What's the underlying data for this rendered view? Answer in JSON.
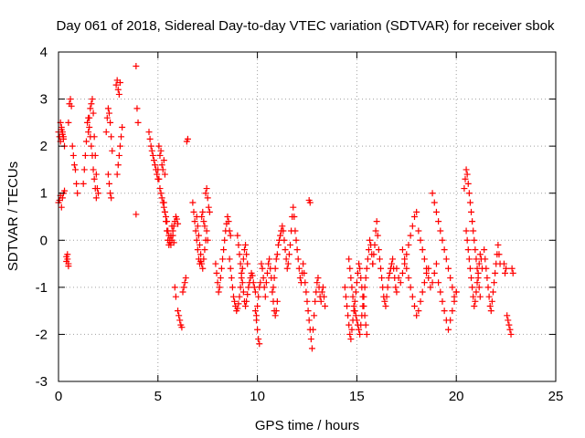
{
  "chart_data": {
    "type": "scatter",
    "title": "Day 061 of 2018, Sidereal Day-to-day VTEC variation (SDTVAR) for receiver sbok",
    "xlabel": "GPS time / hours",
    "ylabel": "SDTVAR / TECUs",
    "xlim": [
      0,
      25
    ],
    "ylim": [
      -3,
      4
    ],
    "xticks": [
      0,
      5,
      10,
      15,
      20,
      25
    ],
    "yticks": [
      -3,
      -2,
      -1,
      0,
      1,
      2,
      3,
      4
    ],
    "grid": true,
    "marker": "plus",
    "color": "#ff0000",
    "series": [
      {
        "name": "SDTVAR",
        "x": [
          0.0,
          0.05,
          0.1,
          0.15,
          0.2,
          0.25,
          0.1,
          0.15,
          0.2,
          0.25,
          0.3,
          0.0,
          0.05,
          0.1,
          0.15,
          0.2,
          0.25,
          0.3,
          0.4,
          0.45,
          0.5,
          0.4,
          0.45,
          0.5,
          0.5,
          0.55,
          0.6,
          0.65,
          0.7,
          0.75,
          0.8,
          0.85,
          0.9,
          0.95,
          1.25,
          1.3,
          1.35,
          1.4,
          1.45,
          1.5,
          1.55,
          1.6,
          1.65,
          1.7,
          1.75,
          1.8,
          1.85,
          1.9,
          1.5,
          1.55,
          1.6,
          1.65,
          1.7,
          1.75,
          1.8,
          1.85,
          1.9,
          1.95,
          2.0,
          2.4,
          2.45,
          2.5,
          2.55,
          2.6,
          2.65,
          2.7,
          2.5,
          2.55,
          2.6,
          2.65,
          2.9,
          2.95,
          3.0,
          3.05,
          3.1,
          2.95,
          3.0,
          3.05,
          3.1,
          3.15,
          3.2,
          3.9,
          3.95,
          4.0,
          3.9,
          4.55,
          4.6,
          4.65,
          4.7,
          4.75,
          4.8,
          4.85,
          4.9,
          4.95,
          5.0,
          5.05,
          5.1,
          5.15,
          5.2,
          5.25,
          5.3,
          5.35,
          5.0,
          5.05,
          5.1,
          5.15,
          5.2,
          5.25,
          5.3,
          5.35,
          5.4,
          5.45,
          5.5,
          5.55,
          5.6,
          5.65,
          5.7,
          5.75,
          5.8,
          5.3,
          5.35,
          5.4,
          5.45,
          5.5,
          5.55,
          5.6,
          5.65,
          5.7,
          5.75,
          5.8,
          5.85,
          5.9,
          5.95,
          6.0,
          5.85,
          5.9,
          6.0,
          6.05,
          6.1,
          6.15,
          6.2,
          6.25,
          6.3,
          6.35,
          6.4,
          6.45,
          6.5,
          6.75,
          6.8,
          6.85,
          6.9,
          6.95,
          7.0,
          7.05,
          7.1,
          7.15,
          7.2,
          7.25,
          7.3,
          7.35,
          7.4,
          7.45,
          7.5,
          7.55,
          7.6,
          6.95,
          7.0,
          7.05,
          7.1,
          7.15,
          7.2,
          7.25,
          7.3,
          7.35,
          7.4,
          7.45,
          7.5,
          7.9,
          7.95,
          8.0,
          8.05,
          8.1,
          8.15,
          8.2,
          8.25,
          8.3,
          8.35,
          8.4,
          8.45,
          8.5,
          8.55,
          8.6,
          8.65,
          8.6,
          8.65,
          8.7,
          8.75,
          8.8,
          8.85,
          8.9,
          8.95,
          9.0,
          9.05,
          9.1,
          9.15,
          9.2,
          9.25,
          9.3,
          9.35,
          9.4,
          9.45,
          9.5,
          9.0,
          9.05,
          9.1,
          9.15,
          9.2,
          9.25,
          9.3,
          9.35,
          9.4,
          9.45,
          9.5,
          9.55,
          9.6,
          9.65,
          9.7,
          9.75,
          9.8,
          9.85,
          9.9,
          9.9,
          9.95,
          10.0,
          10.05,
          10.1,
          9.95,
          10.0,
          10.05,
          10.1,
          10.15,
          10.2,
          10.25,
          10.3,
          10.35,
          10.4,
          10.45,
          10.5,
          10.55,
          10.6,
          10.65,
          10.7,
          10.75,
          10.8,
          10.85,
          10.9,
          10.95,
          11.0,
          10.8,
          10.85,
          10.9,
          10.95,
          11.0,
          11.05,
          11.1,
          11.15,
          11.2,
          11.25,
          11.3,
          11.35,
          11.4,
          11.45,
          11.5,
          11.55,
          11.6,
          11.65,
          11.7,
          11.75,
          11.8,
          11.85,
          11.9,
          11.95,
          12.0,
          12.05,
          12.1,
          12.15,
          12.2,
          12.25,
          12.3,
          12.35,
          12.4,
          12.45,
          12.5,
          12.55,
          12.6,
          12.65,
          12.7,
          12.75,
          12.8,
          12.85,
          12.9,
          12.95,
          13.0,
          13.05,
          13.1,
          13.15,
          13.2,
          13.25,
          13.3,
          13.35,
          13.4,
          12.6,
          12.65,
          14.4,
          14.45,
          14.5,
          14.55,
          14.6,
          14.65,
          14.7,
          14.75,
          14.8,
          14.85,
          14.9,
          14.95,
          15.0,
          15.05,
          15.1,
          15.15,
          15.2,
          15.25,
          15.3,
          15.35,
          15.4,
          15.45,
          15.5,
          14.6,
          14.65,
          14.7,
          14.75,
          14.8,
          14.85,
          14.9,
          14.95,
          15.0,
          15.05,
          15.1,
          15.15,
          15.2,
          15.25,
          15.3,
          15.35,
          15.4,
          15.45,
          15.5,
          15.55,
          15.6,
          15.65,
          15.7,
          15.75,
          15.8,
          15.8,
          15.85,
          15.9,
          15.95,
          16.0,
          16.05,
          16.1,
          16.15,
          16.2,
          16.25,
          16.3,
          16.35,
          16.4,
          16.45,
          16.5,
          16.55,
          16.6,
          16.65,
          16.7,
          16.75,
          16.8,
          16.85,
          16.9,
          16.95,
          17.0,
          17.0,
          17.1,
          17.2,
          17.3,
          17.4,
          17.5,
          17.6,
          17.7,
          17.8,
          17.9,
          18.0,
          18.1,
          18.2,
          18.3,
          18.4,
          18.5,
          18.6,
          18.7,
          18.8,
          18.9,
          19.0,
          17.3,
          17.4,
          17.5,
          17.6,
          17.7,
          17.8,
          17.9,
          18.0,
          18.1,
          18.2,
          18.3,
          18.4,
          18.5,
          18.6,
          18.8,
          18.9,
          19.0,
          19.1,
          19.2,
          19.3,
          19.4,
          19.5,
          19.6,
          19.7,
          19.8,
          19.9,
          20.0,
          19.1,
          19.2,
          19.3,
          19.4,
          19.5,
          19.6,
          19.7,
          19.8,
          19.9,
          20.0,
          20.4,
          20.45,
          20.5,
          20.55,
          20.6,
          20.65,
          20.7,
          20.75,
          20.8,
          20.85,
          20.9,
          20.95,
          21.0,
          21.05,
          21.1,
          21.15,
          21.2,
          20.5,
          20.55,
          20.6,
          20.65,
          20.7,
          20.75,
          20.8,
          20.85,
          20.9,
          20.95,
          21.0,
          21.05,
          21.1,
          21.15,
          21.2,
          21.25,
          21.3,
          21.4,
          21.45,
          21.5,
          21.55,
          21.6,
          21.65,
          21.7,
          21.75,
          21.8,
          21.85,
          21.9,
          21.95,
          22.0,
          22.05,
          22.1,
          22.15,
          22.2,
          22.4,
          22.45,
          22.5,
          22.55,
          22.6,
          22.65,
          22.7,
          22.75,
          22.8,
          22.85
        ],
        "y": [
          2.3,
          2.2,
          2.1,
          2.35,
          2.25,
          2.15,
          2.5,
          2.4,
          2.3,
          2.2,
          2.0,
          0.8,
          0.85,
          0.95,
          0.7,
          0.9,
          1.0,
          1.05,
          -0.35,
          -0.4,
          -0.5,
          -0.45,
          -0.3,
          -0.55,
          2.5,
          2.9,
          3.0,
          2.85,
          2.0,
          1.8,
          1.6,
          1.5,
          1.2,
          1.0,
          1.2,
          1.5,
          1.8,
          2.1,
          2.5,
          2.6,
          2.4,
          2.2,
          2.0,
          1.8,
          1.5,
          1.3,
          1.1,
          0.9,
          2.3,
          2.6,
          2.8,
          2.9,
          3.0,
          2.7,
          2.2,
          1.8,
          1.4,
          1.1,
          1.0,
          2.3,
          2.6,
          2.8,
          2.7,
          2.5,
          2.2,
          1.9,
          1.4,
          1.2,
          1.0,
          0.9,
          3.3,
          3.4,
          3.2,
          3.1,
          3.35,
          1.4,
          1.6,
          1.8,
          2.0,
          2.2,
          2.4,
          3.7,
          2.8,
          2.5,
          0.55,
          2.3,
          2.15,
          2.0,
          1.9,
          1.8,
          1.7,
          1.6,
          1.5,
          1.4,
          1.3,
          2.0,
          1.8,
          1.9,
          1.6,
          1.5,
          1.7,
          1.4,
          1.5,
          1.3,
          1.1,
          1.0,
          0.9,
          0.8,
          0.7,
          0.6,
          0.5,
          0.4,
          0.2,
          0.1,
          0.0,
          -0.1,
          0.0,
          0.1,
          -0.05,
          0.8,
          0.6,
          0.4,
          0.2,
          0.0,
          -0.1,
          -0.05,
          0.1,
          0.3,
          0.2,
          0.3,
          0.4,
          0.5,
          0.45,
          0.35,
          -1.0,
          -1.2,
          -1.5,
          -1.6,
          -1.7,
          -1.8,
          -1.85,
          -1.1,
          -1.0,
          -0.9,
          -0.8,
          2.1,
          2.15,
          0.8,
          0.6,
          0.4,
          0.2,
          0.0,
          -0.2,
          -0.4,
          -0.5,
          -0.45,
          0.5,
          0.6,
          0.4,
          0.3,
          1.0,
          1.1,
          0.9,
          0.7,
          0.6,
          0.5,
          0.3,
          0.1,
          -0.1,
          -0.3,
          -0.5,
          -0.6,
          -0.4,
          -0.2,
          0.0,
          0.2,
          0.0,
          -0.5,
          -0.7,
          -0.9,
          -1.1,
          -1.0,
          -0.8,
          -0.6,
          -0.4,
          -0.2,
          0.0,
          0.2,
          0.35,
          0.5,
          0.4,
          0.2,
          0.1,
          -0.4,
          -0.6,
          -0.8,
          -1.0,
          -1.2,
          -1.3,
          -1.4,
          -1.5,
          -1.45,
          -1.35,
          -1.2,
          -1.0,
          -0.8,
          -0.6,
          -0.4,
          -0.2,
          -0.1,
          -0.3,
          -0.5,
          0.1,
          -0.1,
          -0.3,
          -0.5,
          -0.7,
          -0.9,
          -1.1,
          -1.3,
          -1.4,
          -1.3,
          -1.15,
          -1.0,
          -0.9,
          -0.8,
          -0.7,
          -0.75,
          -0.9,
          -1.0,
          -1.1,
          -1.5,
          -1.7,
          -1.9,
          -2.1,
          -2.2,
          -1.6,
          -1.4,
          -1.2,
          -1.0,
          -0.9,
          -0.5,
          -0.6,
          -0.8,
          -1.0,
          -1.2,
          -0.9,
          -0.7,
          -0.5,
          -0.4,
          -0.6,
          -0.8,
          -1.1,
          -1.3,
          -1.5,
          -1.6,
          -1.5,
          -1.3,
          -1.0,
          -0.8,
          -0.6,
          -0.4,
          -0.3,
          -0.1,
          0.0,
          0.1,
          0.2,
          0.3,
          0.2,
          0.0,
          -0.2,
          -0.4,
          -0.6,
          -0.5,
          -0.3,
          -0.1,
          0.2,
          0.5,
          0.7,
          0.5,
          0.2,
          0.0,
          -0.2,
          -0.4,
          -0.6,
          -0.8,
          -0.9,
          -0.7,
          -0.5,
          -0.7,
          -0.9,
          -1.1,
          -1.3,
          -1.5,
          -1.7,
          -1.9,
          -2.1,
          -2.3,
          -1.9,
          -1.6,
          -1.3,
          -1.1,
          -0.9,
          -0.8,
          -1.0,
          -1.2,
          -1.3,
          -1.1,
          -1.0,
          -1.2,
          -1.4,
          0.85,
          0.8,
          -1.0,
          -1.2,
          -1.4,
          -1.6,
          -1.8,
          -2.0,
          -2.1,
          -1.9,
          -1.7,
          -1.5,
          -1.3,
          -1.1,
          -0.9,
          -0.7,
          -0.5,
          -0.6,
          -0.8,
          -1.0,
          -1.2,
          -1.4,
          -1.6,
          -1.8,
          -2.0,
          -0.4,
          -0.6,
          -0.8,
          -1.0,
          -1.2,
          -1.4,
          -1.5,
          -1.6,
          -1.7,
          -1.8,
          -1.9,
          -2.0,
          -1.8,
          -1.6,
          -1.4,
          -1.2,
          -1.0,
          -0.8,
          -0.6,
          -0.4,
          -0.2,
          0.0,
          -0.1,
          -0.3,
          -0.5,
          -0.5,
          -0.3,
          -0.1,
          0.2,
          0.4,
          0.1,
          -0.2,
          -0.4,
          -0.6,
          -0.8,
          -1.0,
          -1.2,
          -1.3,
          -1.4,
          -1.2,
          -1.0,
          -0.8,
          -0.7,
          -0.6,
          -0.5,
          -0.4,
          -0.6,
          -0.8,
          -1.0,
          -1.1,
          -0.6,
          -0.8,
          -0.9,
          -0.7,
          -0.5,
          -0.3,
          -0.1,
          0.1,
          0.3,
          0.5,
          0.6,
          0.2,
          0.0,
          -0.2,
          -0.4,
          -0.6,
          -0.8,
          -1.0,
          -0.9,
          -0.7,
          -0.5,
          -0.2,
          -0.4,
          -0.6,
          -0.8,
          -1.0,
          -1.2,
          -1.4,
          -1.6,
          -1.5,
          -1.3,
          -1.1,
          -0.9,
          -0.7,
          -0.6,
          1.0,
          0.8,
          0.6,
          0.4,
          0.2,
          0.0,
          -0.2,
          -0.4,
          -0.6,
          -0.8,
          -1.0,
          -1.2,
          -1.1,
          -0.9,
          -1.1,
          -1.3,
          -1.5,
          -1.7,
          -1.9,
          -1.7,
          -1.5,
          -1.3,
          -1.1,
          1.1,
          1.3,
          1.5,
          1.4,
          1.2,
          1.0,
          0.8,
          0.6,
          0.4,
          0.2,
          0.0,
          -0.2,
          -0.4,
          -0.6,
          -0.8,
          -1.0,
          -1.2,
          0.2,
          0.0,
          -0.2,
          -0.4,
          -0.6,
          -0.8,
          -1.0,
          -1.2,
          -1.4,
          -1.3,
          -1.1,
          -0.9,
          -0.7,
          -0.5,
          -0.3,
          -0.4,
          -0.6,
          -0.2,
          -0.4,
          -0.6,
          -0.8,
          -1.0,
          -1.2,
          -1.4,
          -1.5,
          -1.3,
          -1.1,
          -0.9,
          -0.7,
          -0.5,
          -0.3,
          -0.1,
          -0.3,
          -0.5,
          -0.5,
          -0.7,
          -0.6,
          -1.6,
          -1.7,
          -1.8,
          -1.9,
          -2.0,
          -0.6,
          -0.7
        ]
      }
    ]
  }
}
